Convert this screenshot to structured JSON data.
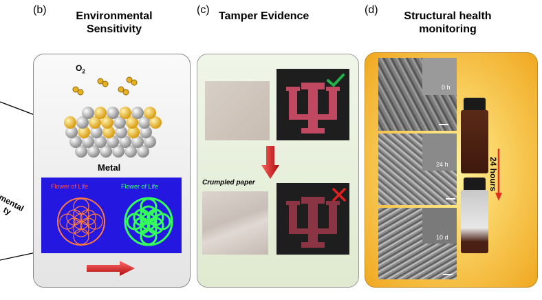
{
  "panels": {
    "b": {
      "label": "(b)",
      "title_line1": "Environmental",
      "title_line2": "Sensitivity",
      "o2_label_main": "O",
      "o2_label_sub": "2",
      "metal_label": "Metal",
      "flower_left": "Flower of Life",
      "flower_right": "Flower of Life"
    },
    "c": {
      "label": "(c)",
      "title": "Tamper Evidence",
      "crumpled_label": "Crumpled paper"
    },
    "d": {
      "label": "(d)",
      "title_line1": "Structural health",
      "title_line2": "monitoring",
      "time_labels": [
        "0 h",
        "24 h",
        "10 d"
      ],
      "duration_label": "24 hours"
    }
  },
  "cutoff_text": {
    "line1": "mental",
    "line2": "ty"
  },
  "colors": {
    "panel_b_bg": "#ededed",
    "panel_c_bg": "#e6f0d8",
    "panel_d_bg": "#f6c445",
    "gold_atom": "#e8b020",
    "silver_atom": "#b8b8b8",
    "arrow_red": "#d92020",
    "emblem_pink": "#c04860",
    "check_green": "#22b04a"
  }
}
